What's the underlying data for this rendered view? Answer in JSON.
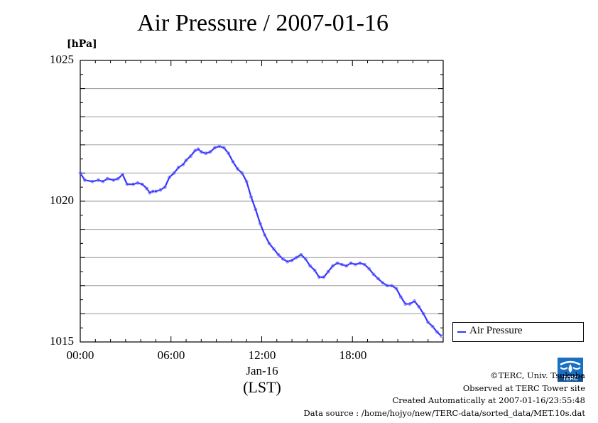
{
  "chart_data": {
    "type": "line",
    "title": "Air Pressure / 2007-01-16",
    "ylabel": "[hPa]",
    "xlabel": "(LST)",
    "date_label": "Jan-16",
    "ylim": [
      1015,
      1025
    ],
    "xlim_hours": [
      0,
      24
    ],
    "y_ticks": [
      "1015",
      "1020",
      "1025"
    ],
    "x_ticks": [
      "00:00",
      "06:00",
      "12:00",
      "18:00"
    ],
    "grid": true,
    "legend_position": "right-bottom",
    "series": [
      {
        "name": "Air Pressure",
        "color": "#3333ff",
        "x_hours": [
          0.0,
          0.3,
          0.8,
          1.2,
          1.5,
          1.8,
          2.2,
          2.5,
          2.8,
          3.1,
          3.5,
          3.8,
          4.1,
          4.4,
          4.6,
          4.8,
          5.0,
          5.3,
          5.6,
          5.9,
          6.2,
          6.5,
          6.8,
          7.0,
          7.3,
          7.6,
          7.8,
          8.0,
          8.3,
          8.6,
          8.9,
          9.2,
          9.5,
          9.8,
          10.1,
          10.4,
          10.7,
          11.0,
          11.3,
          11.6,
          11.9,
          12.2,
          12.5,
          12.8,
          13.1,
          13.4,
          13.7,
          14.0,
          14.3,
          14.6,
          14.9,
          15.2,
          15.5,
          15.8,
          16.1,
          16.4,
          16.7,
          17.0,
          17.3,
          17.6,
          17.9,
          18.2,
          18.5,
          18.8,
          19.1,
          19.4,
          19.7,
          20.0,
          20.3,
          20.6,
          20.9,
          21.2,
          21.5,
          21.8,
          22.1,
          22.4,
          22.7,
          23.0,
          23.3,
          23.6,
          23.9
        ],
        "values": [
          1021.0,
          1020.75,
          1020.7,
          1020.75,
          1020.7,
          1020.8,
          1020.75,
          1020.8,
          1020.95,
          1020.6,
          1020.6,
          1020.65,
          1020.6,
          1020.45,
          1020.3,
          1020.35,
          1020.35,
          1020.4,
          1020.5,
          1020.85,
          1021.0,
          1021.2,
          1021.3,
          1021.45,
          1021.6,
          1021.8,
          1021.85,
          1021.75,
          1021.7,
          1021.75,
          1021.9,
          1021.95,
          1021.9,
          1021.7,
          1021.4,
          1021.15,
          1021.0,
          1020.7,
          1020.15,
          1019.7,
          1019.2,
          1018.8,
          1018.5,
          1018.3,
          1018.1,
          1017.95,
          1017.85,
          1017.9,
          1018.0,
          1018.1,
          1017.95,
          1017.7,
          1017.55,
          1017.3,
          1017.3,
          1017.5,
          1017.7,
          1017.8,
          1017.75,
          1017.7,
          1017.8,
          1017.75,
          1017.8,
          1017.75,
          1017.6,
          1017.4,
          1017.25,
          1017.1,
          1017.0,
          1017.0,
          1016.9,
          1016.6,
          1016.35,
          1016.35,
          1016.45,
          1016.25,
          1016.0,
          1015.7,
          1015.55,
          1015.35,
          1015.2
        ]
      }
    ]
  },
  "credits": {
    "copyright": "©TERC, Univ. Tsukuba",
    "observed": "Observed at TERC Tower site",
    "created": "Created Automatically at 2007-01-16/23:55:48",
    "source": "Data source : /home/hojyo/new/TERC-data/sorted_data/MET.10s.dat",
    "logo_text": "TERC"
  }
}
